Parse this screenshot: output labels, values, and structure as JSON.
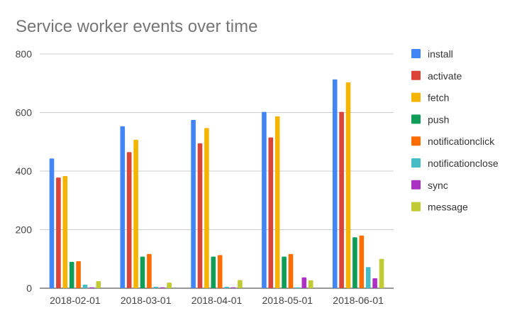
{
  "chart_data": {
    "type": "bar",
    "title": "Service worker events over time",
    "xlabel": "",
    "ylabel": "",
    "categories": [
      "2018-02-01",
      "2018-03-01",
      "2018-04-01",
      "2018-05-01",
      "2018-06-01"
    ],
    "ylim": [
      0,
      800
    ],
    "yticks": [
      0,
      200,
      400,
      600,
      800
    ],
    "grid": true,
    "legend_position": "right",
    "series": [
      {
        "name": "install",
        "color": "#4285f4",
        "values": [
          443,
          553,
          575,
          602,
          713
        ]
      },
      {
        "name": "activate",
        "color": "#db4437",
        "values": [
          378,
          465,
          495,
          515,
          602
        ]
      },
      {
        "name": "fetch",
        "color": "#f4b400",
        "values": [
          383,
          507,
          547,
          587,
          703
        ]
      },
      {
        "name": "push",
        "color": "#0f9d58",
        "values": [
          90,
          108,
          108,
          108,
          174
        ]
      },
      {
        "name": "notificationclick",
        "color": "#ff6d00",
        "values": [
          92,
          117,
          113,
          117,
          180
        ]
      },
      {
        "name": "notificationclose",
        "color": "#46bdc6",
        "values": [
          12,
          5,
          5,
          3,
          72
        ]
      },
      {
        "name": "sync",
        "color": "#ab30c4",
        "values": [
          3,
          3,
          3,
          37,
          34
        ]
      },
      {
        "name": "message",
        "color": "#c0ca33",
        "values": [
          24,
          19,
          28,
          27,
          100
        ]
      }
    ]
  }
}
